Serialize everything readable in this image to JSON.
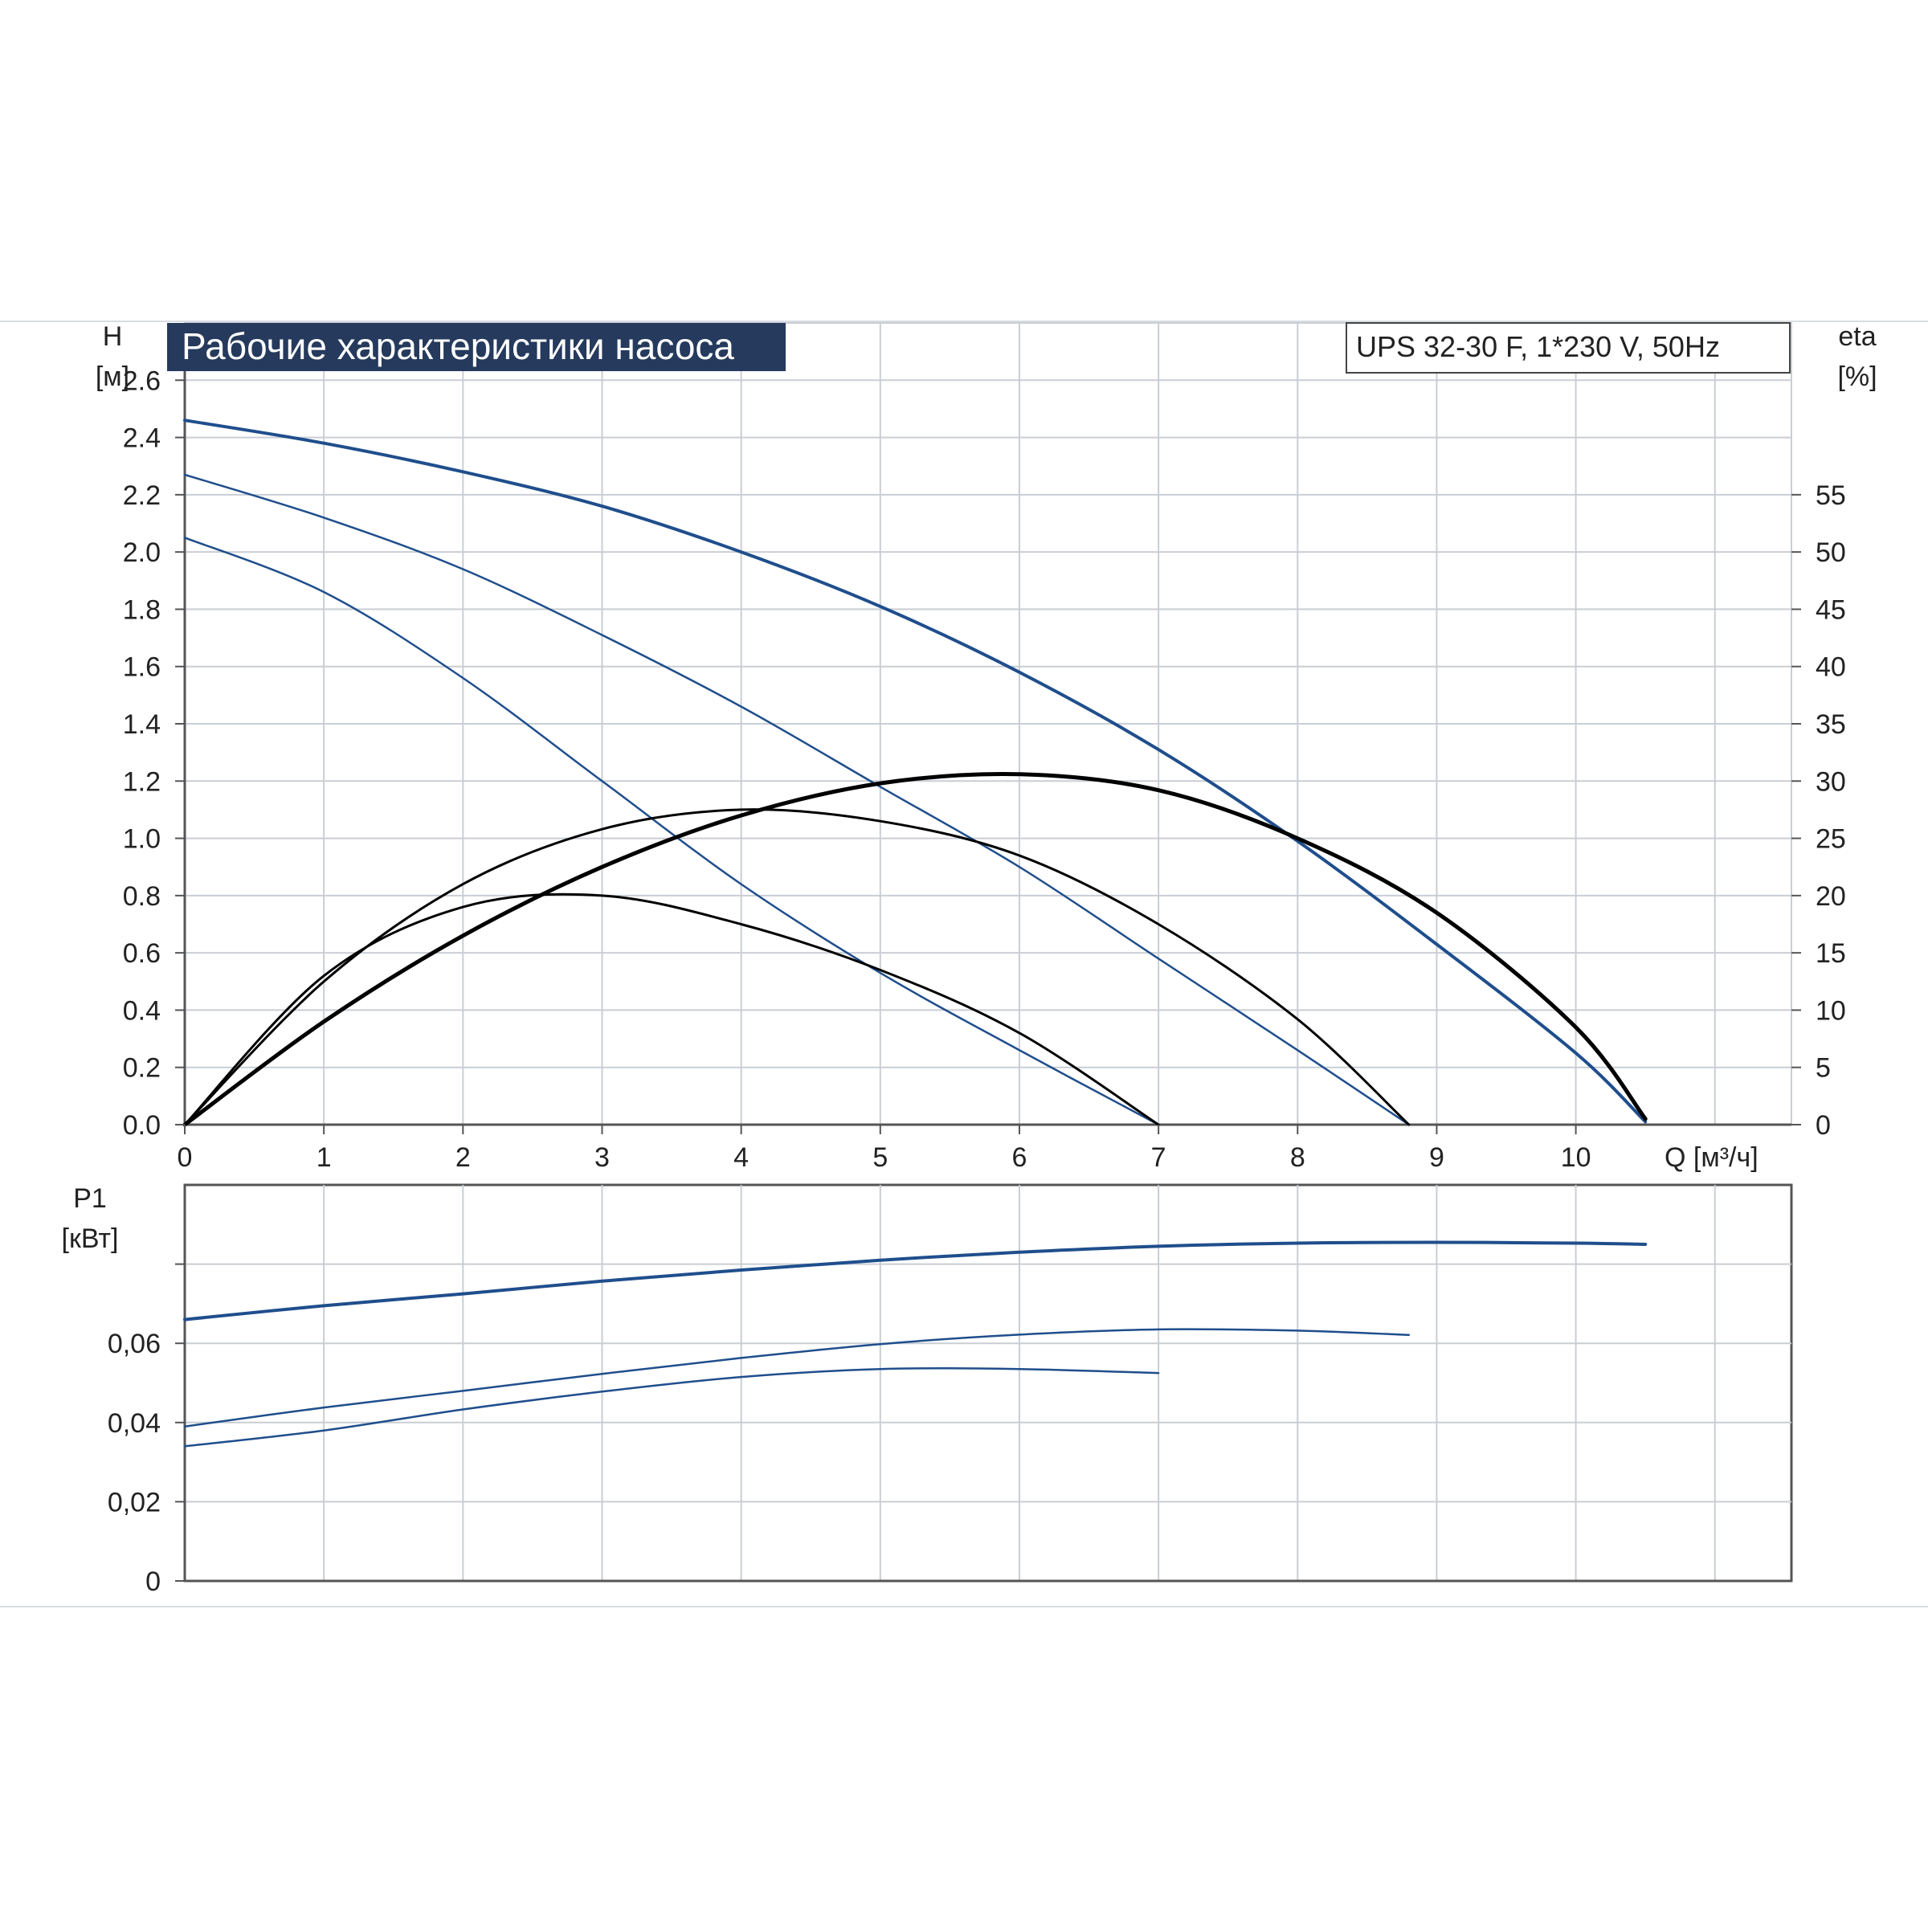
{
  "chart_data": [
    {
      "type": "line",
      "title": "Рабочие характеристики насоса",
      "model_label": "UPS 32-30 F, 1*230 V, 50Hz",
      "x_unit_label": "Q [м³/ч]",
      "x_ticks": [
        "0",
        "1",
        "2",
        "3",
        "4",
        "5",
        "6",
        "7",
        "8",
        "9",
        "10"
      ],
      "xlim": [
        0,
        11.55
      ],
      "grid": true,
      "y_left": {
        "label_line1": "H",
        "label_line2": "[м]",
        "ticks": [
          "0.0",
          "0.2",
          "0.4",
          "0.6",
          "0.8",
          "1.0",
          "1.2",
          "1.4",
          "1.6",
          "1.8",
          "2.0",
          "2.2",
          "2.4",
          "2.6"
        ],
        "ylim": [
          0,
          2.8
        ]
      },
      "y_right": {
        "label_line1": "eta",
        "label_line2": "[%]",
        "ticks": [
          "0",
          "5",
          "10",
          "15",
          "20",
          "25",
          "30",
          "35",
          "40",
          "45",
          "50",
          "55"
        ],
        "ylim": [
          0,
          70
        ]
      },
      "head_series": [
        {
          "color": "#1f4e8c",
          "width": 4,
          "x": [
            0,
            1,
            2,
            3,
            4,
            5,
            6,
            7,
            8,
            9,
            10,
            10.5
          ],
          "y": [
            2.46,
            2.38,
            2.28,
            2.16,
            2.0,
            1.81,
            1.58,
            1.31,
            0.99,
            0.63,
            0.25,
            0.01
          ]
        },
        {
          "color": "#1f4e8c",
          "width": 2.5,
          "x": [
            0,
            1,
            2,
            3,
            4,
            5,
            6,
            7,
            8,
            8.8
          ],
          "y": [
            2.27,
            2.12,
            1.94,
            1.71,
            1.46,
            1.18,
            0.9,
            0.58,
            0.26,
            0.0
          ]
        },
        {
          "color": "#1f4e8c",
          "width": 2.5,
          "x": [
            0,
            1,
            2,
            3,
            4,
            5,
            6,
            7
          ],
          "y": [
            2.05,
            1.86,
            1.56,
            1.2,
            0.84,
            0.53,
            0.26,
            0.0
          ]
        }
      ],
      "efficiency_series": [
        {
          "color": "#000000",
          "width": 5,
          "x": [
            0,
            1,
            2,
            3,
            4,
            5,
            6,
            7,
            8,
            9,
            10,
            10.5
          ],
          "y": [
            0,
            9,
            16.5,
            22.5,
            27,
            29.8,
            30.6,
            29.2,
            25,
            18.5,
            8.5,
            0.5
          ]
        },
        {
          "color": "#000000",
          "width": 3,
          "x": [
            0,
            1,
            2,
            3,
            4,
            5,
            6,
            7,
            8,
            8.8
          ],
          "y": [
            0,
            12.5,
            21,
            25.8,
            27.5,
            26.5,
            23.5,
            17.5,
            9.2,
            0
          ]
        },
        {
          "color": "#000000",
          "width": 3,
          "x": [
            0,
            1,
            2,
            3,
            4,
            5,
            6,
            7
          ],
          "y": [
            0,
            13,
            19,
            20,
            17.5,
            13.5,
            8,
            0
          ]
        }
      ]
    },
    {
      "type": "line",
      "y_label_line1": "P1",
      "y_label_line2": "[кВт]",
      "x_ticks_count": 11,
      "xlim": [
        0,
        11.55
      ],
      "ylim": [
        0,
        0.1
      ],
      "y_ticks": [
        "0",
        "0,02",
        "0,04",
        "0,06"
      ],
      "grid": true,
      "series": [
        {
          "color": "#1f4e8c",
          "width": 4,
          "x": [
            0,
            1,
            2,
            3,
            4,
            5,
            6,
            7,
            8,
            9,
            10,
            10.5
          ],
          "y": [
            0.066,
            0.0695,
            0.0725,
            0.0757,
            0.0785,
            0.081,
            0.083,
            0.0845,
            0.0853,
            0.0855,
            0.0853,
            0.085
          ]
        },
        {
          "color": "#1f4e8c",
          "width": 2.5,
          "x": [
            0,
            1,
            2,
            3,
            4,
            5,
            6,
            7,
            8,
            8.8
          ],
          "y": [
            0.039,
            0.0438,
            0.048,
            0.0523,
            0.0563,
            0.0598,
            0.0622,
            0.0635,
            0.0632,
            0.0621
          ]
        },
        {
          "color": "#1f4e8c",
          "width": 2.5,
          "x": [
            0,
            1,
            2,
            3,
            4,
            5,
            6,
            7
          ],
          "y": [
            0.034,
            0.038,
            0.0433,
            0.0478,
            0.0515,
            0.0535,
            0.0535,
            0.0525
          ]
        }
      ]
    }
  ]
}
